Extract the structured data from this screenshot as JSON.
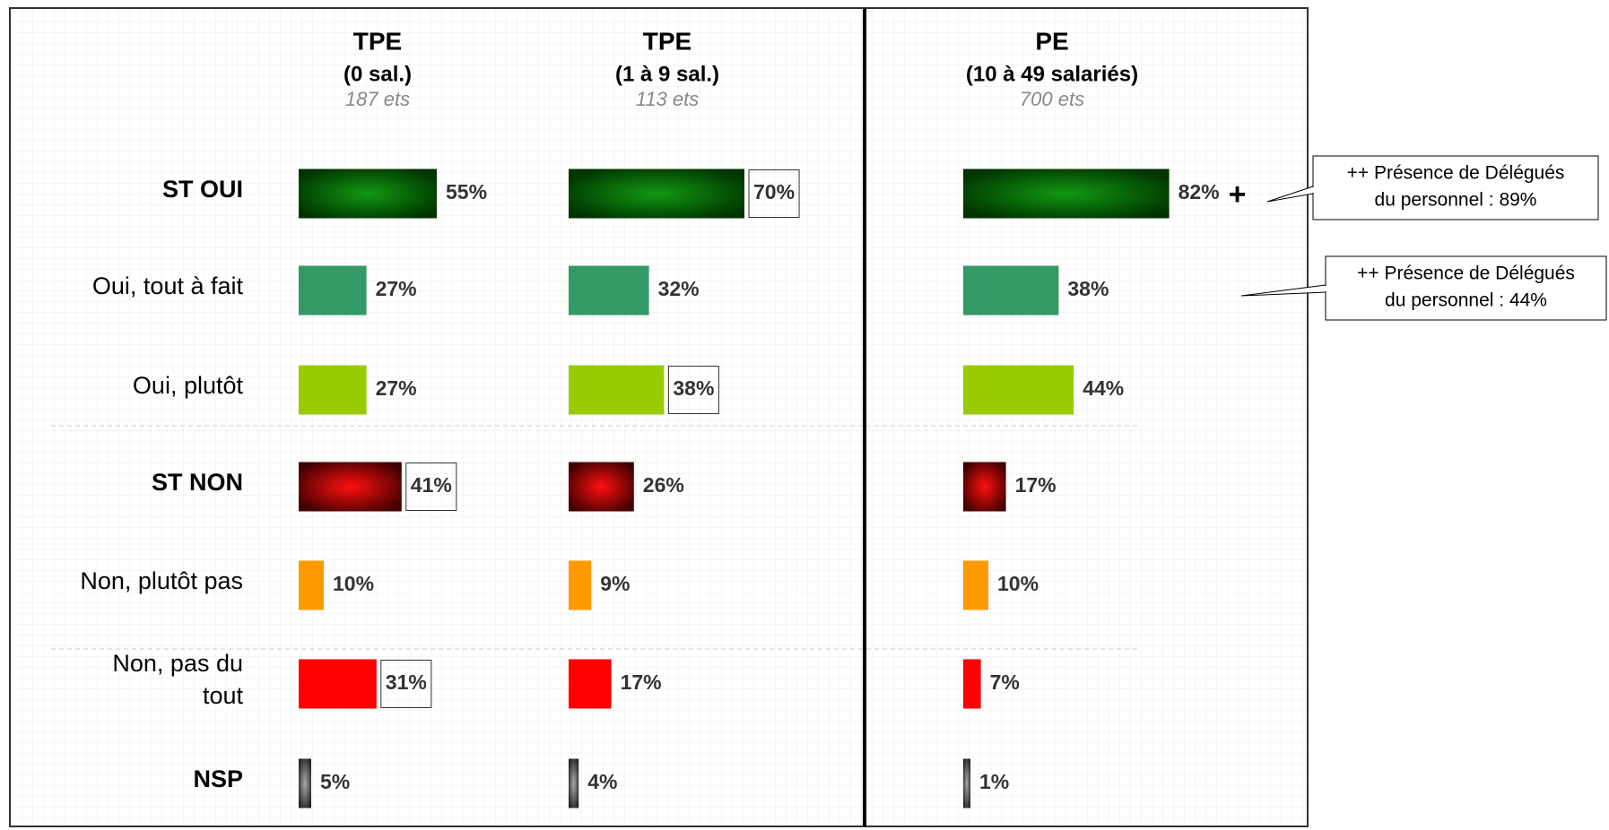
{
  "chart_data": {
    "type": "bar",
    "categories": [
      "ST OUI",
      "Oui, tout à fait",
      "Oui, plutôt",
      "ST NON",
      "Non, plutôt pas",
      "Non, pas du tout",
      "NSP"
    ],
    "bold_categories": [
      true,
      false,
      false,
      true,
      false,
      false,
      true
    ],
    "colors": [
      "#0a6a0a",
      "#339966",
      "#99cc00",
      "#b00000",
      "#ff9900",
      "#ff0000",
      "#555555"
    ],
    "xlim": [
      0,
      100
    ],
    "series": [
      {
        "name": "TPE",
        "subtitle": "(0 sal.)",
        "count": "187 ets",
        "values": [
          55,
          27,
          27,
          41,
          10,
          31,
          5
        ],
        "value_labels": [
          "55%",
          "27%",
          "27%",
          "41%",
          "10%",
          "31%",
          "5%"
        ],
        "boxed": [
          false,
          false,
          false,
          true,
          false,
          true,
          false
        ]
      },
      {
        "name": "TPE",
        "subtitle": "(1 à 9 sal.)",
        "count": "113 ets",
        "values": [
          70,
          32,
          38,
          26,
          9,
          17,
          4
        ],
        "value_labels": [
          "70%",
          "32%",
          "38%",
          "26%",
          "9%",
          "17%",
          "4%"
        ],
        "boxed": [
          true,
          false,
          true,
          false,
          false,
          false,
          false
        ]
      },
      {
        "name": "PE",
        "subtitle": "(10 à 49 salariés)",
        "count": "700 ets",
        "values": [
          82,
          38,
          44,
          17,
          10,
          7,
          1
        ],
        "value_labels": [
          "82%",
          "38%",
          "44%",
          "17%",
          "10%",
          "7%",
          "1%"
        ],
        "boxed": [
          false,
          false,
          false,
          false,
          false,
          false,
          false
        ],
        "marker": "+"
      }
    ],
    "annotations": [
      {
        "lines": [
          "++ Présence de Délégués",
          "du personnel : 89%"
        ]
      },
      {
        "lines": [
          "++ Présence de Délégués",
          "du personnel : 44%"
        ]
      }
    ]
  }
}
